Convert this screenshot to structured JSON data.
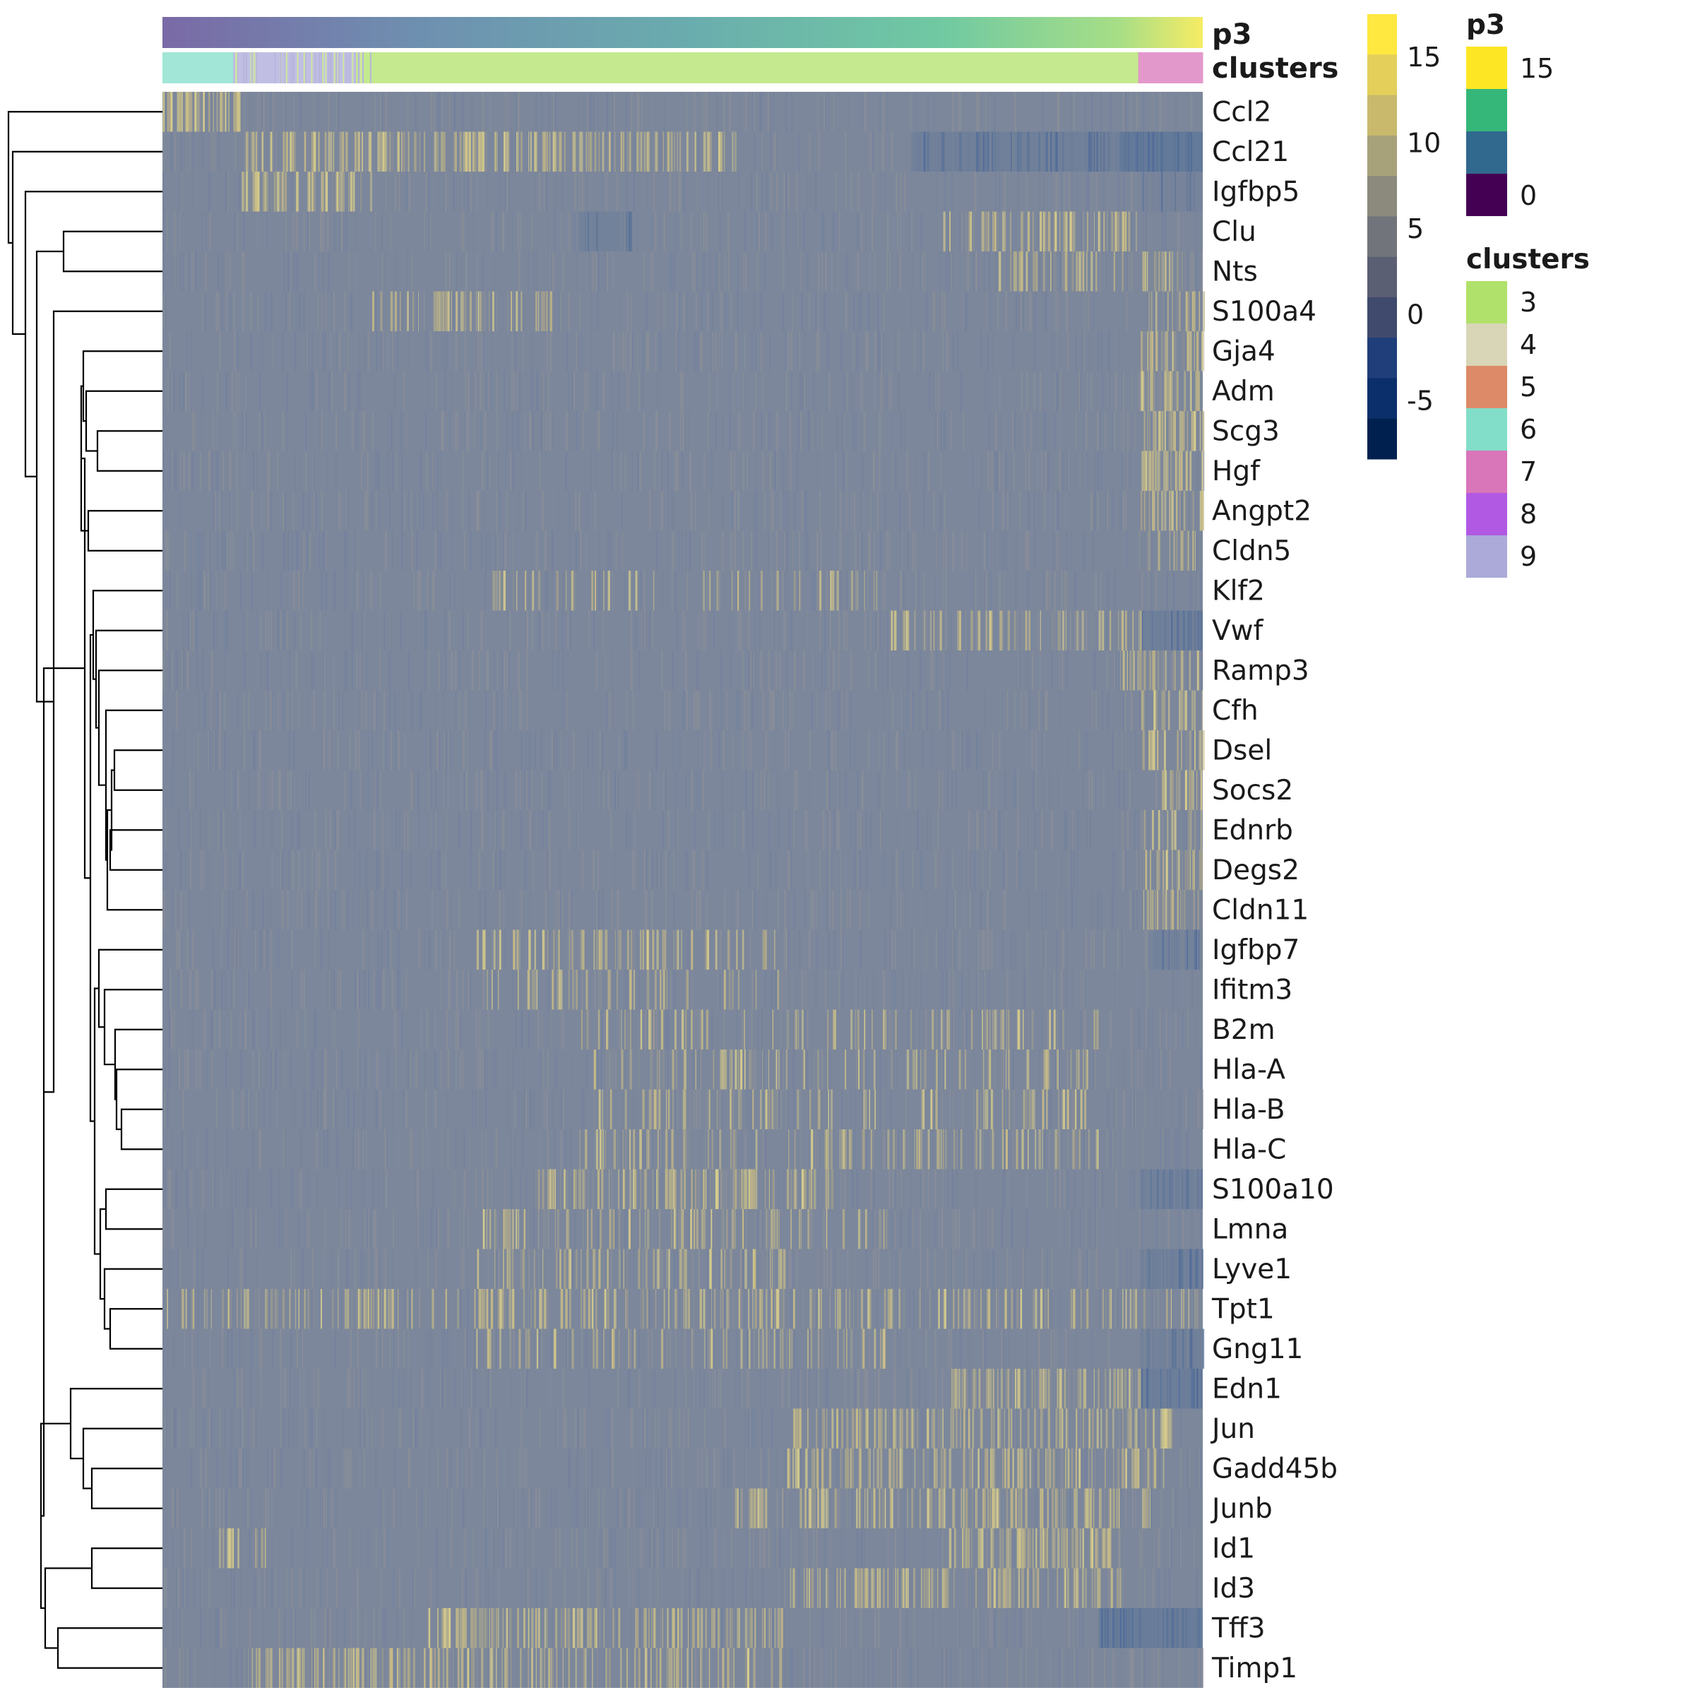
{
  "chart_data": {
    "type": "heatmap",
    "title": "",
    "rows": [
      "Ccl2",
      "Ccl21",
      "Igfbp5",
      "Clu",
      "Nts",
      "S100a4",
      "Gja4",
      "Adm",
      "Scg3",
      "Hgf",
      "Angpt2",
      "Cldn5",
      "Klf2",
      "Vwf",
      "Ramp3",
      "Cfh",
      "Dsel",
      "Socs2",
      "Ednrb",
      "Degs2",
      "Cldn11",
      "Igfbp7",
      "Ifitm3",
      "B2m",
      "Hla-A",
      "Hla-B",
      "Hla-C",
      "S100a10",
      "Lmna",
      "Lyve1",
      "Tpt1",
      "Gng11",
      "Edn1",
      "Jun",
      "Gadd45b",
      "Junb",
      "Id1",
      "Id3",
      "Tff3",
      "Timp1"
    ],
    "row_dendrogram": true,
    "column_annotations": [
      {
        "name": "p3",
        "type": "continuous",
        "range": [
          0,
          15
        ]
      },
      {
        "name": "clusters",
        "type": "categorical",
        "segments": [
          {
            "cluster": "6",
            "start": 0.0,
            "end": 0.068
          },
          {
            "cluster": "9",
            "start": 0.068,
            "end": 0.185
          },
          {
            "cluster": "3",
            "start": 0.185,
            "end": 0.938
          },
          {
            "cluster": "7",
            "start": 0.938,
            "end": 1.0
          }
        ]
      }
    ],
    "heatmap_scale": {
      "ticks": [
        15,
        10,
        5,
        0,
        -5
      ],
      "colors": [
        "#ffe840",
        "#e3cf5a",
        "#c9b96c",
        "#a8a27a",
        "#8b8a7d",
        "#72747b",
        "#5b5f73",
        "#3f4a6c",
        "#1f3e7a",
        "#0b2f6b",
        "#00214f"
      ]
    },
    "legends": [
      {
        "title": "p3",
        "ticks": [
          "15",
          "0"
        ],
        "colors": [
          "#fde725",
          "#35b779",
          "#31688e",
          "#440154"
        ]
      },
      {
        "title": "clusters",
        "items": [
          {
            "label": "3",
            "color": "#b0e16a"
          },
          {
            "label": "4",
            "color": "#d8d6b7"
          },
          {
            "label": "5",
            "color": "#dc8a68"
          },
          {
            "label": "6",
            "color": "#82dec8"
          },
          {
            "label": "7",
            "color": "#d975b9"
          },
          {
            "label": "8",
            "color": "#b159e3"
          },
          {
            "label": "9",
            "color": "#abaad9"
          }
        ]
      }
    ],
    "row_patterns": [
      {
        "hi": [
          [
            0.0,
            0.075,
            0.8
          ]
        ]
      },
      {
        "hi": [
          [
            0.08,
            0.55,
            0.55
          ]
        ],
        "lo": [
          [
            0.72,
            0.92,
            0.45
          ],
          [
            0.92,
            1.0,
            0.85
          ]
        ]
      },
      {
        "hi": [
          [
            0.075,
            0.1,
            0.9
          ],
          [
            0.1,
            0.2,
            0.55
          ]
        ],
        "lo": [
          [
            0.94,
            1.0,
            0.2
          ]
        ]
      },
      {
        "hi": [
          [
            0.75,
            0.94,
            0.5
          ]
        ],
        "lo": [
          [
            0.4,
            0.45,
            0.3
          ]
        ]
      },
      {
        "hi": [
          [
            0.8,
            0.98,
            0.4
          ]
        ]
      },
      {
        "hi": [
          [
            0.2,
            0.38,
            0.4
          ],
          [
            0.94,
            1.0,
            0.3
          ]
        ]
      },
      {
        "hi": [
          [
            0.94,
            1.0,
            0.7
          ]
        ]
      },
      {
        "hi": [
          [
            0.94,
            1.0,
            0.8
          ]
        ]
      },
      {
        "hi": [
          [
            0.94,
            1.0,
            0.85
          ]
        ]
      },
      {
        "hi": [
          [
            0.94,
            1.0,
            0.75
          ]
        ]
      },
      {
        "hi": [
          [
            0.94,
            1.0,
            0.5
          ]
        ]
      },
      {
        "hi": [
          [
            0.94,
            1.0,
            0.3
          ]
        ]
      },
      {
        "hi": [
          [
            0.3,
            0.7,
            0.15
          ]
        ]
      },
      {
        "hi": [
          [
            0.7,
            0.94,
            0.35
          ]
        ],
        "lo": [
          [
            0.94,
            1.0,
            0.5
          ]
        ]
      },
      {
        "hi": [
          [
            0.92,
            0.96,
            0.7
          ],
          [
            0.96,
            1.0,
            0.3
          ]
        ]
      },
      {
        "hi": [
          [
            0.94,
            1.0,
            0.45
          ]
        ]
      },
      {
        "hi": [
          [
            0.94,
            1.0,
            0.4
          ]
        ]
      },
      {
        "hi": [
          [
            0.94,
            1.0,
            0.35
          ]
        ]
      },
      {
        "hi": [
          [
            0.94,
            1.0,
            0.3
          ]
        ]
      },
      {
        "hi": [
          [
            0.94,
            1.0,
            0.5
          ]
        ]
      },
      {
        "hi": [
          [
            0.94,
            1.0,
            0.4
          ]
        ]
      },
      {
        "hi": [
          [
            0.3,
            0.6,
            0.3
          ]
        ],
        "lo": [
          [
            0.95,
            1.0,
            0.3
          ]
        ]
      },
      {
        "hi": [
          [
            0.3,
            0.6,
            0.2
          ]
        ]
      },
      {
        "hi": [
          [
            0.4,
            0.9,
            0.2
          ]
        ]
      },
      {
        "hi": [
          [
            0.4,
            0.9,
            0.2
          ]
        ]
      },
      {
        "hi": [
          [
            0.4,
            0.9,
            0.2
          ]
        ]
      },
      {
        "hi": [
          [
            0.4,
            0.9,
            0.25
          ]
        ]
      },
      {
        "hi": [
          [
            0.35,
            0.65,
            0.45
          ]
        ],
        "lo": [
          [
            0.94,
            1.0,
            0.4
          ]
        ]
      },
      {
        "hi": [
          [
            0.3,
            0.7,
            0.25
          ]
        ]
      },
      {
        "hi": [
          [
            0.3,
            0.6,
            0.3
          ]
        ],
        "lo": [
          [
            0.94,
            1.0,
            0.45
          ]
        ]
      },
      {
        "hi": [
          [
            0.0,
            1.0,
            0.3
          ]
        ]
      },
      {
        "hi": [
          [
            0.3,
            0.7,
            0.2
          ]
        ],
        "lo": [
          [
            0.94,
            1.0,
            0.35
          ]
        ]
      },
      {
        "hi": [
          [
            0.75,
            0.94,
            0.5
          ]
        ],
        "lo": [
          [
            0.94,
            1.0,
            0.55
          ]
        ]
      },
      {
        "hi": [
          [
            0.6,
            0.97,
            0.45
          ]
        ]
      },
      {
        "hi": [
          [
            0.6,
            0.97,
            0.4
          ]
        ]
      },
      {
        "hi": [
          [
            0.55,
            0.95,
            0.45
          ]
        ]
      },
      {
        "hi": [
          [
            0.75,
            0.92,
            0.65
          ],
          [
            0.05,
            0.1,
            0.4
          ]
        ]
      },
      {
        "hi": [
          [
            0.6,
            0.92,
            0.5
          ]
        ]
      },
      {
        "hi": [
          [
            0.25,
            0.6,
            0.5
          ]
        ],
        "lo": [
          [
            0.9,
            1.0,
            0.7
          ]
        ]
      },
      {
        "hi": [
          [
            0.08,
            0.2,
            0.6
          ],
          [
            0.2,
            0.6,
            0.35
          ]
        ]
      }
    ]
  }
}
